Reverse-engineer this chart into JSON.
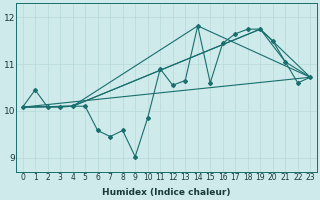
{
  "xlabel": "Humidex (Indice chaleur)",
  "ylabel": "",
  "bg_color": "#ceeaea",
  "line_color": "#1a6e6e",
  "xlim": [
    -0.5,
    23.5
  ],
  "ylim": [
    8.7,
    12.3
  ],
  "yticks": [
    9,
    10,
    11,
    12
  ],
  "xticks": [
    0,
    1,
    2,
    3,
    4,
    5,
    6,
    7,
    8,
    9,
    10,
    11,
    12,
    13,
    14,
    15,
    16,
    17,
    18,
    19,
    20,
    21,
    22,
    23
  ],
  "series1_x": [
    0,
    1,
    2,
    3,
    4,
    5,
    6,
    7,
    8,
    9,
    10,
    11,
    12,
    13,
    14,
    15,
    16,
    17,
    18,
    19,
    20,
    21,
    22,
    23
  ],
  "series1_y": [
    10.08,
    10.45,
    10.08,
    10.08,
    10.1,
    10.1,
    9.58,
    9.45,
    9.58,
    9.02,
    9.85,
    10.9,
    10.55,
    10.65,
    11.82,
    10.6,
    11.45,
    11.65,
    11.75,
    11.75,
    11.5,
    11.05,
    10.6,
    10.72
  ],
  "line2_x": [
    0,
    23
  ],
  "line2_y": [
    10.08,
    10.72
  ],
  "line3_x": [
    0,
    4,
    14,
    23
  ],
  "line3_y": [
    10.08,
    10.1,
    11.82,
    10.72
  ],
  "line4_x": [
    0,
    4,
    19,
    23
  ],
  "line4_y": [
    10.08,
    10.1,
    11.75,
    10.72
  ],
  "line5_x": [
    0,
    4,
    19,
    21,
    23
  ],
  "line5_y": [
    10.08,
    10.1,
    11.75,
    11.05,
    10.72
  ]
}
